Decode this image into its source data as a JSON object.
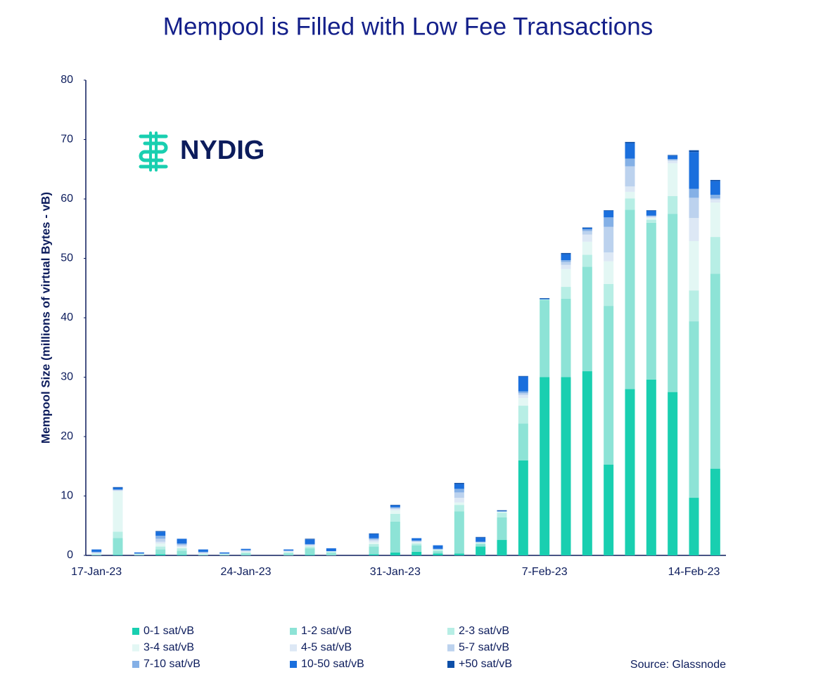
{
  "chart_data": {
    "type": "stacked-bar",
    "title": "Mempool is Filled with Low Fee Transactions",
    "y_label": "Mempool Size (millions of virtual Bytes - vB)",
    "logo": "NYDIG",
    "source": "Source: Glassnode",
    "categories": [
      "17-Jan-23",
      null,
      null,
      null,
      null,
      null,
      null,
      "24-Jan-23",
      null,
      null,
      null,
      null,
      null,
      null,
      "31-Jan-23",
      null,
      null,
      null,
      null,
      null,
      null,
      "7-Feb-23",
      null,
      null,
      null,
      null,
      null,
      null,
      "14-Feb-23",
      null
    ],
    "ylim": [
      0,
      80
    ],
    "yticks": [
      0,
      10,
      20,
      30,
      40,
      50,
      60,
      70,
      80
    ],
    "series": [
      {
        "name": "0-1 sat/vB",
        "color": "#19cfb0",
        "values": [
          0,
          0.1,
          0,
          0.2,
          0.1,
          0,
          0,
          0,
          0,
          0,
          0.1,
          0,
          0,
          0.2,
          0.5,
          0.6,
          0.3,
          0.3,
          1.5,
          2.6,
          16,
          30,
          30,
          31,
          15.3,
          28,
          29.6,
          27.5,
          9.7,
          14.6
        ]
      },
      {
        "name": "1-2 sat/vB",
        "color": "#8de3d6",
        "values": [
          0.1,
          2.8,
          0.1,
          0.8,
          0.7,
          0.1,
          0.1,
          0.3,
          0,
          0.3,
          1.1,
          0.4,
          0,
          1.3,
          5.2,
          1.1,
          0.4,
          7.1,
          0.4,
          3.8,
          6.2,
          13,
          13.2,
          17.6,
          26.7,
          30.2,
          26.4,
          30,
          29.7,
          32.8
        ]
      },
      {
        "name": "2-3 sat/vB",
        "color": "#b7eee5",
        "values": [
          0.1,
          1.1,
          0.1,
          0.5,
          0.4,
          0.1,
          0.1,
          0.2,
          0,
          0.2,
          0.3,
          0.2,
          0,
          0.4,
          1.3,
          0.3,
          0.2,
          1.1,
          0.2,
          0.8,
          3,
          0.1,
          2,
          2,
          3.7,
          1.9,
          0.5,
          3,
          5.2,
          6.2
        ]
      },
      {
        "name": "3-4 sat/vB",
        "color": "#e3f7f4",
        "values": [
          0.1,
          6.8,
          0.1,
          0.5,
          0.2,
          0.1,
          0.1,
          0.1,
          0,
          0.1,
          0.1,
          0.1,
          0,
          0.3,
          0.6,
          0.2,
          0.1,
          0.4,
          0.1,
          0.2,
          1.3,
          0,
          3,
          2.2,
          3.8,
          1.1,
          0.3,
          5.5,
          8.3,
          5.8
        ]
      },
      {
        "name": "4-5 sat/vB",
        "color": "#dde8f5",
        "values": [
          0.1,
          0.1,
          0,
          0.3,
          0.2,
          0.1,
          0,
          0.1,
          0,
          0.1,
          0.1,
          0,
          0,
          0.3,
          0.2,
          0.1,
          0,
          0.8,
          0,
          0,
          0.5,
          0,
          0.7,
          1.2,
          1.5,
          0.9,
          0.2,
          0.4,
          3.9,
          0.5
        ]
      },
      {
        "name": "5-7 sat/vB",
        "color": "#bcd2ee",
        "values": [
          0.1,
          0.1,
          0,
          0.5,
          0.2,
          0.1,
          0,
          0.1,
          0,
          0.1,
          0.1,
          0,
          0,
          0.2,
          0.2,
          0.1,
          0,
          0.9,
          0,
          0,
          0.3,
          0,
          0.5,
          0.6,
          4.3,
          3.4,
          0.1,
          0.2,
          3.4,
          0.2
        ]
      },
      {
        "name": "7-10 sat/vB",
        "color": "#84b0e6",
        "values": [
          0.1,
          0.1,
          0,
          0.5,
          0.2,
          0.1,
          0,
          0.1,
          0,
          0,
          0.1,
          0,
          0,
          0.2,
          0.1,
          0.1,
          0.1,
          0.6,
          0.1,
          0,
          0.3,
          0,
          0.3,
          0.3,
          1.6,
          1.3,
          0.1,
          0.1,
          1.5,
          0.6
        ]
      },
      {
        "name": "10-50 sat/vB",
        "color": "#1a6fdd",
        "values": [
          0.4,
          0.3,
          0.2,
          0.7,
          0.8,
          0.4,
          0.2,
          0.2,
          0,
          0.2,
          0.8,
          0.5,
          0,
          0.7,
          0.3,
          0.4,
          0.6,
          0.8,
          0.7,
          0.1,
          2.5,
          0.1,
          1,
          0.2,
          1.1,
          2.6,
          0.8,
          0.6,
          6.2,
          2.3
        ]
      },
      {
        "name": "+50 sat/vB",
        "color": "#0d4fa8",
        "values": [
          0,
          0.1,
          0,
          0.1,
          0,
          0,
          0,
          0,
          0,
          0,
          0.1,
          0,
          0,
          0.1,
          0.1,
          0,
          0,
          0.2,
          0.1,
          0.1,
          0.1,
          0.1,
          0.2,
          0.1,
          0.1,
          0.2,
          0.1,
          0.1,
          0.3,
          0.2
        ]
      }
    ]
  }
}
